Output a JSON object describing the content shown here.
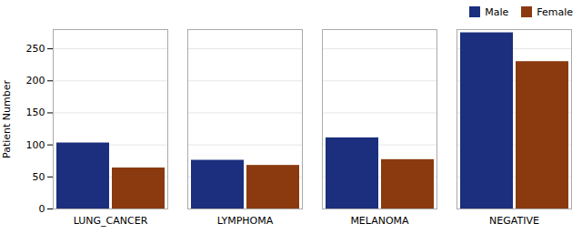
{
  "chart_data": {
    "type": "bar",
    "ylabel": "Patient Number",
    "categories": [
      "LUNG_CANCER",
      "LYMPHOMA",
      "MELANOMA",
      "NEGATIVE"
    ],
    "series": [
      {
        "name": "Male",
        "color": "#1b2f7e",
        "values": [
          103,
          76,
          111,
          275
        ]
      },
      {
        "name": "Female",
        "color": "#8b3a0f",
        "values": [
          64,
          68,
          77,
          230
        ]
      }
    ],
    "ylim": [
      0,
      280
    ],
    "yticks": [
      0,
      50,
      100,
      150,
      200,
      250
    ],
    "grid": true,
    "legend": "upper right"
  }
}
